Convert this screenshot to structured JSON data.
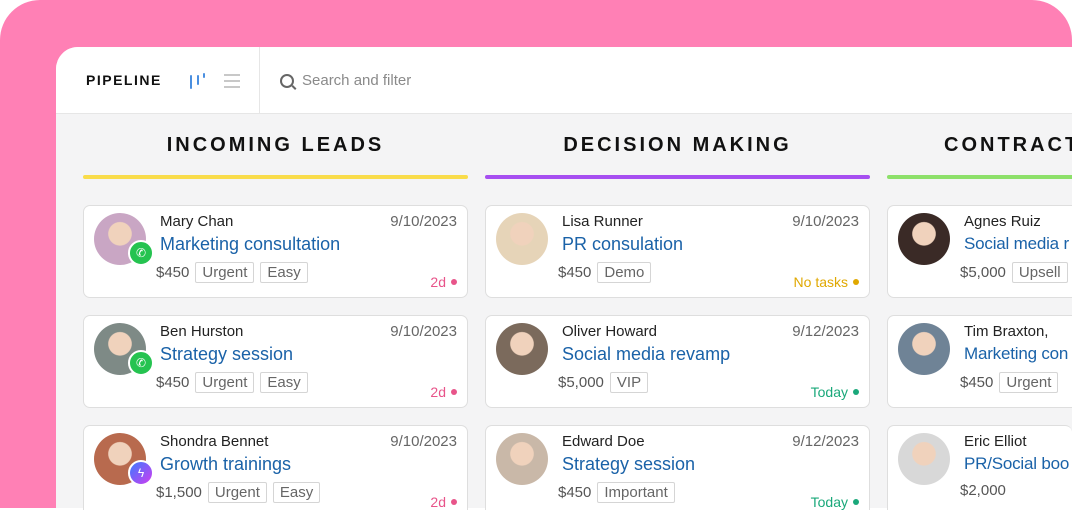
{
  "header": {
    "title": "PIPELINE",
    "search_placeholder": "Search and filter",
    "board_view_icon": "kanban-icon",
    "list_view_icon": "list-icon"
  },
  "colors": {
    "background": "#ff80b5",
    "title_link": "#1a62a8",
    "overdue": "#e8548a",
    "no_tasks": "#e0a800",
    "today": "#1aa87a"
  },
  "columns": [
    {
      "title": "INCOMING LEADS",
      "color": "#f9dc4a",
      "cards": [
        {
          "name": "Mary Chan",
          "date": "9/10/2023",
          "title": "Marketing consultation",
          "price": "$450",
          "tags": [
            "Urgent",
            "Easy"
          ],
          "status": "2d",
          "status_color": "#e8548a",
          "channel": "whatsapp",
          "avatar_color": "#c9a6c4"
        },
        {
          "name": "Ben Hurston",
          "date": "9/10/2023",
          "title": "Strategy session",
          "price": "$450",
          "tags": [
            "Urgent",
            "Easy"
          ],
          "status": "2d",
          "status_color": "#e8548a",
          "channel": "whatsapp",
          "avatar_color": "#7e8a86"
        },
        {
          "name": "Shondra Bennet",
          "date": "9/10/2023",
          "title": "Growth trainings",
          "price": "$1,500",
          "tags": [
            "Urgent",
            "Easy"
          ],
          "status": "2d",
          "status_color": "#e8548a",
          "channel": "messenger",
          "avatar_color": "#b86a4e"
        }
      ]
    },
    {
      "title": "DECISION MAKING",
      "color": "#a64ff0",
      "cards": [
        {
          "name": "Lisa Runner",
          "date": "9/10/2023",
          "title": "PR consulation",
          "price": "$450",
          "tags": [
            "Demo"
          ],
          "status": "No tasks",
          "status_color": "#e0a800",
          "avatar_color": "#e6d4b8"
        },
        {
          "name": "Oliver Howard",
          "date": "9/12/2023",
          "title": "Social media revamp",
          "price": "$5,000",
          "tags": [
            "VIP"
          ],
          "status": "Today",
          "status_color": "#1aa87a",
          "avatar_color": "#7b6a5c"
        },
        {
          "name": "Edward Doe",
          "date": "9/12/2023",
          "title": "Strategy session",
          "price": "$450",
          "tags": [
            "Important"
          ],
          "status": "Today",
          "status_color": "#1aa87a",
          "avatar_color": "#c9b8a8"
        }
      ]
    },
    {
      "title": "CONTRACT",
      "color": "#8de06a",
      "cards": [
        {
          "name": "Agnes Ruiz",
          "date": "",
          "title": "Social media r",
          "price": "$5,000",
          "tags": [
            "Upsell"
          ],
          "status": "",
          "avatar_color": "#3a2a26"
        },
        {
          "name": "Tim Braxton,",
          "date": "",
          "title": "Marketing con",
          "price": "$450",
          "tags": [
            "Urgent"
          ],
          "status": "",
          "avatar_color": "#6f8396"
        },
        {
          "name": "Eric Elliot",
          "date": "",
          "title": "PR/Social boo",
          "price": "$2,000",
          "tags": [],
          "status": "",
          "avatar_color": "#d8d8d8"
        }
      ]
    }
  ]
}
